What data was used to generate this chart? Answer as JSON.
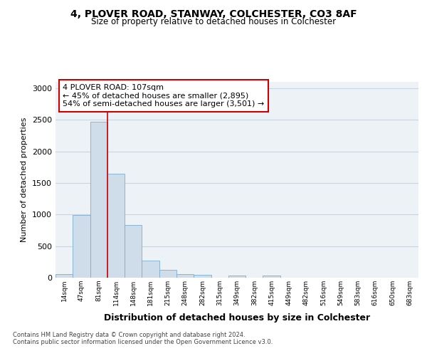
{
  "title_line1": "4, PLOVER ROAD, STANWAY, COLCHESTER, CO3 8AF",
  "title_line2": "Size of property relative to detached houses in Colchester",
  "xlabel": "Distribution of detached houses by size in Colchester",
  "ylabel": "Number of detached properties",
  "bar_labels": [
    "14sqm",
    "47sqm",
    "81sqm",
    "114sqm",
    "148sqm",
    "181sqm",
    "215sqm",
    "248sqm",
    "282sqm",
    "315sqm",
    "349sqm",
    "382sqm",
    "415sqm",
    "449sqm",
    "482sqm",
    "516sqm",
    "549sqm",
    "583sqm",
    "616sqm",
    "650sqm",
    "683sqm"
  ],
  "bar_values": [
    60,
    990,
    2470,
    1650,
    830,
    270,
    120,
    60,
    50,
    0,
    30,
    0,
    30,
    0,
    0,
    0,
    0,
    0,
    0,
    0,
    0
  ],
  "bar_color": "#cfdcea",
  "bar_edge_color": "#7aaed0",
  "property_line_index": 2.5,
  "annotation_text": "4 PLOVER ROAD: 107sqm\n← 45% of detached houses are smaller (2,895)\n54% of semi-detached houses are larger (3,501) →",
  "annotation_box_facecolor": "#ffffff",
  "annotation_box_edgecolor": "#cc0000",
  "vline_color": "#cc0000",
  "ylim": [
    0,
    3100
  ],
  "yticks": [
    0,
    500,
    1000,
    1500,
    2000,
    2500,
    3000
  ],
  "grid_color": "#c8d4e0",
  "bg_color": "#edf2f7",
  "footer_text": "Contains HM Land Registry data © Crown copyright and database right 2024.\nContains public sector information licensed under the Open Government Licence v3.0."
}
